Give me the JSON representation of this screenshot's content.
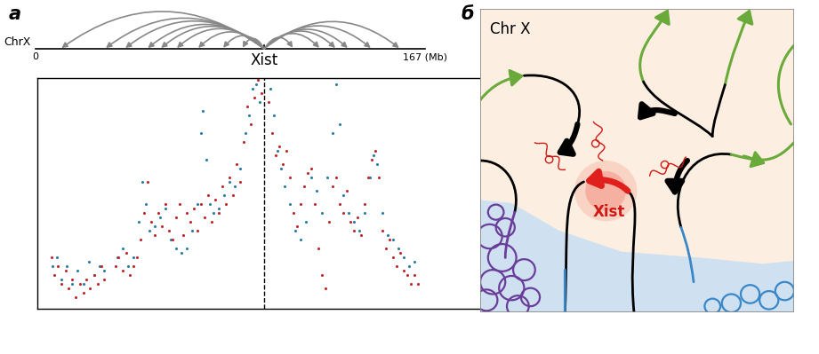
{
  "panel_labels": [
    "а",
    "б"
  ],
  "chromosome": {
    "label": "ChrX",
    "xlim": [
      0,
      167
    ],
    "ticks": [
      0,
      {
        "value": 167,
        "label": "167 (Mb)"
      }
    ],
    "xist_label": "Xist",
    "xist_position": 98,
    "contacts": [
      10.7,
      29.7,
      38.1,
      47.7,
      53.4,
      60.2,
      69.4,
      80.1,
      88.5,
      110.6,
      122.0,
      128.9,
      134.2,
      144.1,
      156.3
    ]
  },
  "chart_data": {
    "type": "scatter",
    "xlim": [
      1,
      195
    ],
    "ylim": [
      0,
      100
    ],
    "xticks": [],
    "yticks": [],
    "tick_labels": false,
    "marker": "o",
    "series": [
      {
        "color": "#2b7bab",
        "x": [
          7.6,
          9.2,
          11.4,
          13.7,
          16.0,
          18.3,
          20.6,
          22.9,
          25.2,
          27.5,
          29.7,
          35.1,
          37.4,
          39.7,
          41.9,
          44.2,
          45.8,
          47.3,
          48.8,
          51.1,
          53.4,
          55.7,
          58.0,
          60.2,
          62.5,
          64.8,
          67.1,
          69.4,
          70.9,
          71.7,
          73.2,
          74.7,
          76.3,
          78.5,
          80.8,
          83.1,
          85.4,
          87.7,
          90.0,
          91.5,
          93.0,
          94.6,
          96.1,
          100.7,
          102.2,
          103.7,
          105.2,
          106.8,
          109.1,
          111.3,
          113.6,
          115.9,
          118.2,
          120.5,
          122.8,
          125.1,
          127.4,
          128.9,
          130.4,
          131.9,
          134.2,
          136.5,
          138.8,
          141.1,
          143.4,
          144.9,
          146.4,
          148.7,
          151.0,
          153.3,
          155.6,
          157.9,
          160.1,
          162.4
        ],
        "values": [
          18.5,
          22.3,
          12.7,
          18.5,
          10.8,
          16.5,
          10.8,
          20.4,
          14.6,
          18.5,
          16.5,
          22.3,
          26.2,
          18.5,
          22.3,
          37.7,
          55.0,
          45.4,
          33.8,
          35.8,
          39.6,
          43.5,
          30.0,
          26.2,
          24.2,
          26.2,
          33.8,
          45.4,
          76.2,
          85.8,
          64.6,
          45.4,
          41.5,
          43.5,
          49.2,
          55.0,
          53.1,
          60.8,
          76.2,
          83.8,
          95.4,
          97.3,
          89.6,
          95.4,
          83.8,
          68.5,
          60.8,
          53.1,
          45.4,
          33.8,
          30.0,
          37.7,
          56.9,
          51.2,
          41.5,
          56.9,
          76.2,
          97.3,
          80.0,
          49.2,
          41.5,
          37.7,
          33.8,
          41.5,
          56.9,
          66.5,
          62.7,
          41.5,
          31.9,
          30.0,
          26.2,
          22.3,
          18.5,
          20.4
        ]
      },
      {
        "color": "#c1272d",
        "x": [
          6.9,
          8.4,
          9.9,
          11.4,
          13.0,
          14.5,
          16.0,
          17.5,
          19.1,
          20.6,
          22.1,
          23.6,
          25.2,
          26.7,
          28.2,
          29.7,
          34.3,
          35.8,
          37.4,
          38.9,
          40.4,
          41.9,
          43.5,
          45.0,
          46.5,
          48.1,
          49.6,
          51.1,
          52.6,
          54.1,
          55.7,
          57.2,
          58.7,
          60.2,
          61.8,
          63.3,
          64.8,
          66.3,
          67.8,
          69.4,
          70.9,
          72.4,
          73.9,
          75.5,
          77.0,
          78.5,
          80.0,
          81.5,
          83.1,
          84.6,
          86.1,
          87.6,
          89.2,
          90.7,
          92.2,
          93.7,
          95.3,
          96.8,
          99.9,
          101.4,
          102.9,
          104.5,
          106.0,
          107.5,
          109.0,
          110.6,
          112.1,
          113.6,
          115.1,
          116.6,
          118.2,
          119.7,
          121.2,
          122.7,
          124.3,
          125.8,
          127.3,
          128.8,
          130.3,
          131.9,
          133.4,
          134.9,
          136.4,
          138.0,
          139.5,
          141.0,
          142.5,
          144.0,
          145.6,
          147.1,
          148.6,
          150.1,
          151.7,
          153.2,
          154.7,
          156.2,
          157.7,
          159.3,
          160.8,
          162.3,
          163.8
        ],
        "values": [
          22.3,
          14.6,
          18.5,
          10.8,
          16.5,
          8.8,
          12.7,
          5.0,
          10.8,
          6.9,
          12.7,
          8.8,
          14.6,
          10.8,
          18.5,
          12.7,
          18.5,
          22.3,
          16.5,
          24.2,
          14.6,
          18.5,
          22.3,
          30.0,
          41.5,
          55.0,
          37.7,
          31.9,
          41.5,
          35.8,
          45.4,
          33.8,
          30.0,
          39.6,
          45.4,
          31.9,
          41.5,
          37.7,
          43.5,
          33.8,
          45.4,
          39.6,
          49.2,
          37.7,
          47.3,
          41.5,
          53.1,
          45.4,
          56.9,
          49.2,
          62.7,
          55.0,
          72.3,
          87.7,
          80.0,
          91.5,
          99.2,
          93.5,
          89.6,
          76.2,
          66.5,
          70.4,
          62.7,
          68.5,
          56.9,
          41.5,
          35.8,
          45.4,
          53.1,
          58.8,
          60.8,
          45.4,
          26.2,
          14.6,
          8.8,
          37.7,
          53.1,
          56.9,
          45.4,
          41.5,
          51.2,
          37.7,
          33.8,
          39.6,
          31.9,
          45.4,
          56.9,
          64.6,
          68.5,
          56.9,
          33.8,
          26.2,
          30.0,
          22.3,
          18.5,
          24.2,
          16.5,
          14.6,
          10.8,
          14.6,
          10.8
        ]
      }
    ]
  },
  "diagram": {
    "title": "Chr X",
    "gene_label": "Xist"
  }
}
